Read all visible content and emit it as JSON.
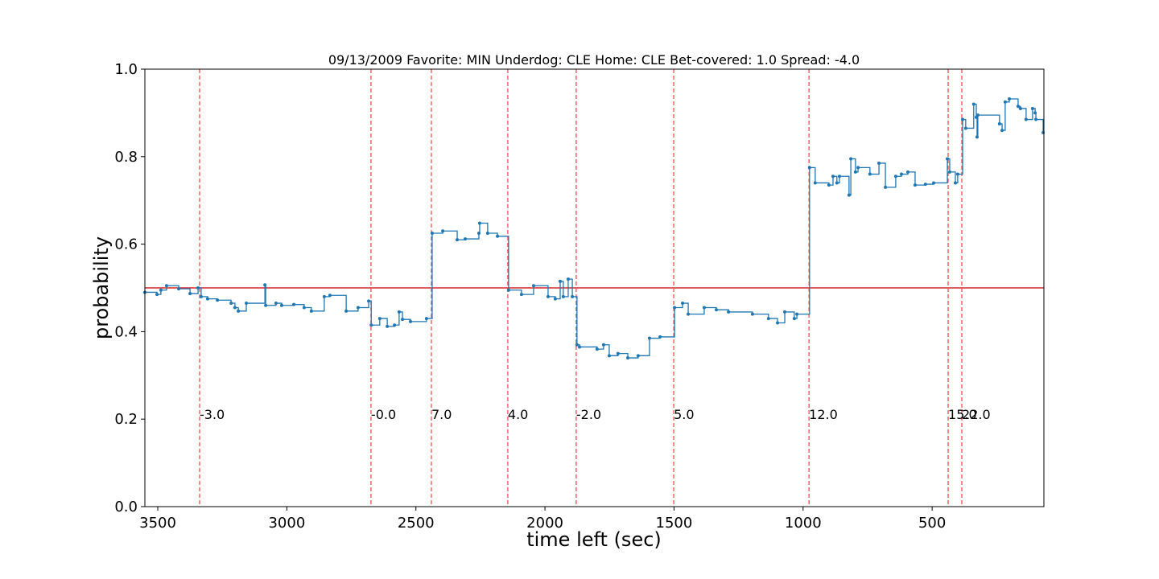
{
  "chart_data": {
    "type": "line",
    "title": "09/13/2009 Favorite: MIN Underdog: CLE Home: CLE Bet-covered: 1.0 Spread: -4.0",
    "xlabel": "time left (sec)",
    "ylabel": "probability",
    "xlim": [
      3550,
      67
    ],
    "ylim": [
      0,
      1
    ],
    "xticks": [
      3500,
      3000,
      2500,
      2000,
      1500,
      1000,
      500
    ],
    "yticks": [
      {
        "value": 0,
        "label": "0.0"
      },
      0.2,
      0.4,
      0.6,
      0.8,
      {
        "value": 1,
        "label": "1.0"
      }
    ],
    "series": [
      {
        "color": "#1f77b4",
        "x": [
          3550,
          3503,
          3488,
          3466,
          3419,
          3375,
          3344,
          3332,
          3307,
          3269,
          3216,
          3201,
          3188,
          3157,
          3085,
          3082,
          3042,
          3020,
          2973,
          2933,
          2905,
          2855,
          2833,
          2770,
          2724,
          2683,
          2673,
          2640,
          2611,
          2583,
          2565,
          2552,
          2521,
          2459,
          2437,
          2396,
          2340,
          2309,
          2256,
          2253,
          2222,
          2184,
          2141,
          2091,
          2044,
          1988,
          1960,
          1941,
          1929,
          1910,
          1894,
          1876,
          1866,
          1798,
          1773,
          1751,
          1717,
          1679,
          1639,
          1595,
          1554,
          1498,
          1467,
          1445,
          1383,
          1336,
          1289,
          1196,
          1134,
          1099,
          1071,
          1034,
          1024,
          975,
          953,
          900,
          884,
          869,
          859,
          822,
          815,
          797,
          787,
          741,
          706,
          681,
          641,
          619,
          594,
          566,
          526,
          494,
          441,
          432,
          410,
          401,
          382,
          370,
          339,
          329,
          326,
          323,
          239,
          229,
          217,
          201,
          167,
          158,
          136,
          111,
          101,
          98,
          70
        ],
        "values": [
          0.49,
          0.485,
          0.495,
          0.505,
          0.498,
          0.487,
          0.5,
          0.48,
          0.475,
          0.472,
          0.465,
          0.455,
          0.447,
          0.465,
          0.507,
          0.46,
          0.465,
          0.46,
          0.462,
          0.455,
          0.447,
          0.48,
          0.483,
          0.447,
          0.455,
          0.47,
          0.415,
          0.43,
          0.412,
          0.415,
          0.445,
          0.428,
          0.423,
          0.43,
          0.625,
          0.63,
          0.61,
          0.612,
          0.625,
          0.648,
          0.625,
          0.618,
          0.495,
          0.485,
          0.505,
          0.48,
          0.475,
          0.515,
          0.48,
          0.52,
          0.48,
          0.37,
          0.365,
          0.36,
          0.37,
          0.345,
          0.35,
          0.34,
          0.345,
          0.385,
          0.388,
          0.455,
          0.465,
          0.44,
          0.455,
          0.45,
          0.445,
          0.44,
          0.43,
          0.42,
          0.445,
          0.43,
          0.44,
          0.775,
          0.74,
          0.735,
          0.755,
          0.74,
          0.755,
          0.712,
          0.795,
          0.765,
          0.775,
          0.76,
          0.785,
          0.73,
          0.755,
          0.76,
          0.765,
          0.735,
          0.737,
          0.74,
          0.795,
          0.765,
          0.74,
          0.76,
          0.885,
          0.865,
          0.92,
          0.89,
          0.845,
          0.895,
          0.875,
          0.86,
          0.925,
          0.932,
          0.915,
          0.91,
          0.885,
          0.91,
          0.9,
          0.885,
          0.855
        ]
      }
    ],
    "hline": {
      "y": 0.5,
      "color": "#d62728"
    },
    "vlines": {
      "x": [
        3338,
        2674,
        2440,
        2144,
        1879,
        1501,
        977,
        438,
        385
      ],
      "color": "#f05050"
    },
    "annotations": [
      {
        "x": 3338,
        "y": 0.2,
        "text": "-3.0"
      },
      {
        "x": 2674,
        "y": 0.2,
        "text": "-0.0"
      },
      {
        "x": 2440,
        "y": 0.2,
        "text": "7.0"
      },
      {
        "x": 2144,
        "y": 0.2,
        "text": "4.0"
      },
      {
        "x": 1879,
        "y": 0.2,
        "text": "-2.0"
      },
      {
        "x": 1501,
        "y": 0.2,
        "text": "5.0"
      },
      {
        "x": 977,
        "y": 0.2,
        "text": "12.0"
      },
      {
        "x": 438,
        "y": 0.2,
        "text": "15.0"
      },
      {
        "x": 385,
        "y": 0.2,
        "text": "22.0"
      }
    ]
  }
}
